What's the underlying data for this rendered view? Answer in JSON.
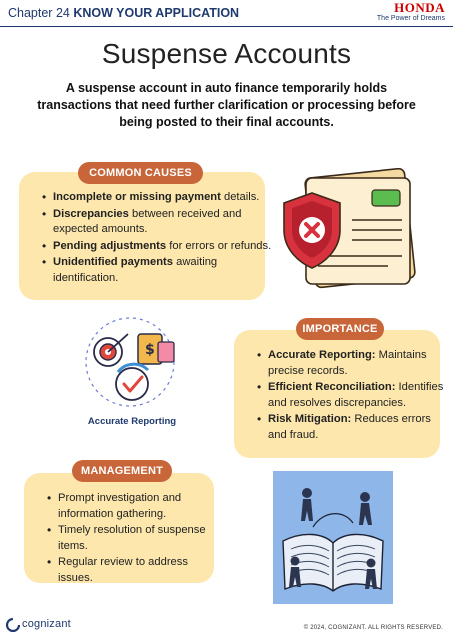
{
  "header": {
    "chapter_prefix": "Chapter 24",
    "chapter_title": "KNOW YOUR APPLICATION",
    "brand_name": "HONDA",
    "brand_tagline": "The Power of Dreams"
  },
  "title": "Suspense Accounts",
  "intro": "A suspense account in auto finance temporarily holds transactions that need further clarification or processing before being posted to their final accounts.",
  "causes": {
    "label": "COMMON CAUSES",
    "items": [
      {
        "bold": "Incomplete or missing payment",
        "rest": " details."
      },
      {
        "bold": "Discrepancies",
        "rest": " between received and expected amounts."
      },
      {
        "bold": "Pending adjustments",
        "rest": " for errors or refunds."
      },
      {
        "bold": "Unidentified payments",
        "rest": " awaiting identification."
      }
    ]
  },
  "importance": {
    "label": "IMPORTANCE",
    "items": [
      {
        "bold": "Accurate Reporting:",
        "rest": " Maintains precise records."
      },
      {
        "bold": "Efficient Reconciliation:",
        "rest": " Identifies and resolves discrepancies."
      },
      {
        "bold": "Risk Mitigation:",
        "rest": " Reduces errors and fraud."
      }
    ]
  },
  "management": {
    "label": "MANAGEMENT",
    "items": [
      "Prompt investigation and information gathering.",
      "Timely resolution of suspense items.",
      "Regular review to address issues."
    ]
  },
  "illustration_caption": "Accurate Reporting",
  "footer": {
    "company": "cognizant",
    "copyright": "© 2024, COGNIZANT. ALL RIGHTS RESERVED."
  },
  "colors": {
    "navy": "#1f3a6e",
    "pill": "#c8663a",
    "card": "#fde7ad",
    "honda_red": "#cc0000"
  }
}
